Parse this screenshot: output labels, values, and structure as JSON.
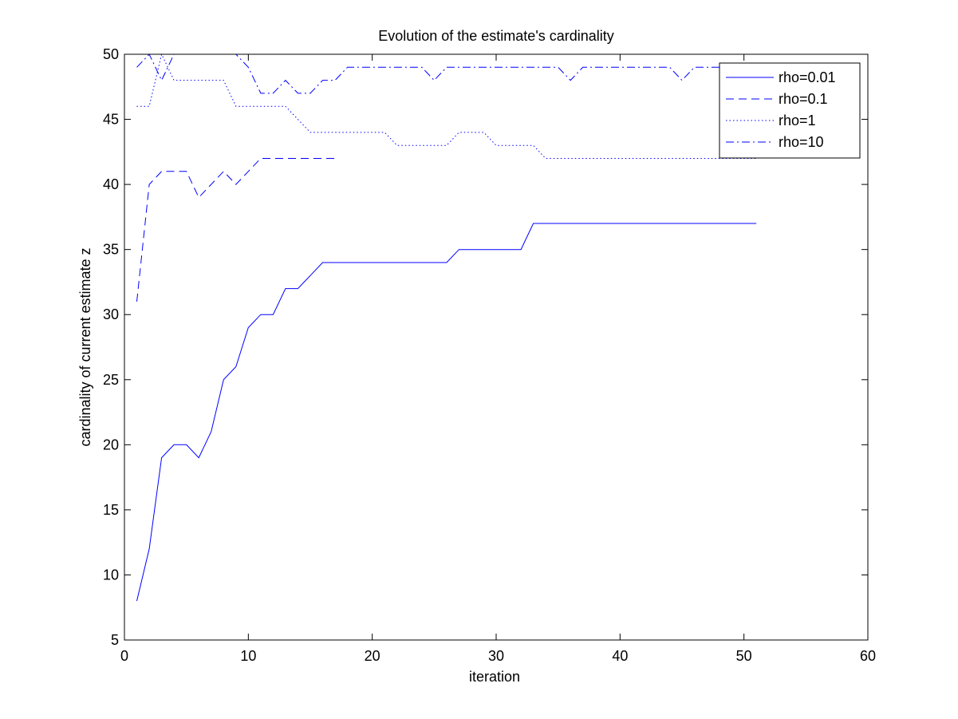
{
  "chart_data": {
    "type": "line",
    "title": "Evolution of the estimate's cardinality",
    "xlabel": "iteration",
    "ylabel": "cardinality of current estimate z",
    "xlim": [
      0,
      60
    ],
    "ylim": [
      5,
      50
    ],
    "xticks": [
      "0",
      "10",
      "20",
      "30",
      "40",
      "50",
      "60"
    ],
    "yticks": [
      "5",
      "10",
      "15",
      "20",
      "25",
      "30",
      "35",
      "40",
      "45",
      "50"
    ],
    "grid": false,
    "legend_position": "top-right",
    "line_color": "#0000ff",
    "series": [
      {
        "name": "rho=0.01",
        "style": "solid",
        "x": [
          1,
          2,
          3,
          4,
          5,
          6,
          7,
          8,
          9,
          10,
          11,
          12,
          13,
          14,
          15,
          16,
          17,
          18,
          19,
          20,
          21,
          22,
          23,
          24,
          25,
          26,
          27,
          28,
          29,
          30,
          31,
          32,
          33,
          34,
          35,
          36,
          37,
          38,
          39,
          40,
          41,
          42,
          43,
          44,
          45,
          46,
          47,
          48,
          49,
          50,
          51
        ],
        "y": [
          8,
          12,
          19,
          20,
          20,
          19,
          21,
          25,
          26,
          29,
          30,
          30,
          32,
          32,
          33,
          34,
          34,
          34,
          34,
          34,
          34,
          34,
          34,
          34,
          34,
          34,
          35,
          35,
          35,
          35,
          35,
          35,
          37,
          37,
          37,
          37,
          37,
          37,
          37,
          37,
          37,
          37,
          37,
          37,
          37,
          37,
          37,
          37,
          37,
          37,
          37
        ]
      },
      {
        "name": "rho=0.1",
        "style": "dashed",
        "x": [
          1,
          2,
          3,
          4,
          5,
          6,
          7,
          8,
          9,
          10,
          11,
          12,
          13,
          14,
          15,
          16,
          17
        ],
        "y": [
          31,
          40,
          41,
          41,
          41,
          39,
          40,
          41,
          40,
          41,
          42,
          42,
          42,
          42,
          42,
          42,
          42
        ]
      },
      {
        "name": "rho=1",
        "style": "dotted",
        "x": [
          1,
          2,
          3,
          4,
          5,
          6,
          7,
          8,
          9,
          10,
          11,
          12,
          13,
          14,
          15,
          16,
          17,
          18,
          19,
          20,
          21,
          22,
          23,
          24,
          25,
          26,
          27,
          28,
          29,
          30,
          31,
          32,
          33,
          34,
          35,
          36,
          37,
          38,
          39,
          40,
          41,
          42,
          43,
          44,
          45,
          46,
          47,
          48,
          49,
          50,
          51
        ],
        "y": [
          46,
          46,
          50,
          48,
          48,
          48,
          48,
          48,
          46,
          46,
          46,
          46,
          46,
          45,
          44,
          44,
          44,
          44,
          44,
          44,
          44,
          43,
          43,
          43,
          43,
          43,
          44,
          44,
          44,
          43,
          43,
          43,
          43,
          42,
          42,
          42,
          42,
          42,
          42,
          42,
          42,
          42,
          42,
          42,
          42,
          42,
          42,
          42,
          42,
          42,
          42
        ]
      },
      {
        "name": "rho=10",
        "style": "dashdot",
        "x": [
          1,
          2,
          3,
          4,
          5,
          6,
          7,
          8,
          9,
          10,
          11,
          12,
          13,
          14,
          15,
          16,
          17,
          18,
          19,
          20,
          21,
          22,
          23,
          24,
          25,
          26,
          27,
          28,
          29,
          30,
          31,
          32,
          33,
          34,
          35,
          36,
          37,
          38,
          39,
          40,
          41,
          42,
          43,
          44,
          45,
          46,
          47,
          48,
          49,
          50,
          51
        ],
        "y": [
          49,
          50,
          48,
          50,
          51,
          51,
          51,
          51,
          50,
          49,
          47,
          47,
          48,
          47,
          47,
          48,
          48,
          49,
          49,
          49,
          49,
          49,
          49,
          49,
          48,
          49,
          49,
          49,
          49,
          49,
          49,
          49,
          49,
          49,
          49,
          48,
          49,
          49,
          49,
          49,
          49,
          49,
          49,
          49,
          48,
          49,
          49,
          49,
          49,
          49,
          49
        ]
      }
    ]
  }
}
